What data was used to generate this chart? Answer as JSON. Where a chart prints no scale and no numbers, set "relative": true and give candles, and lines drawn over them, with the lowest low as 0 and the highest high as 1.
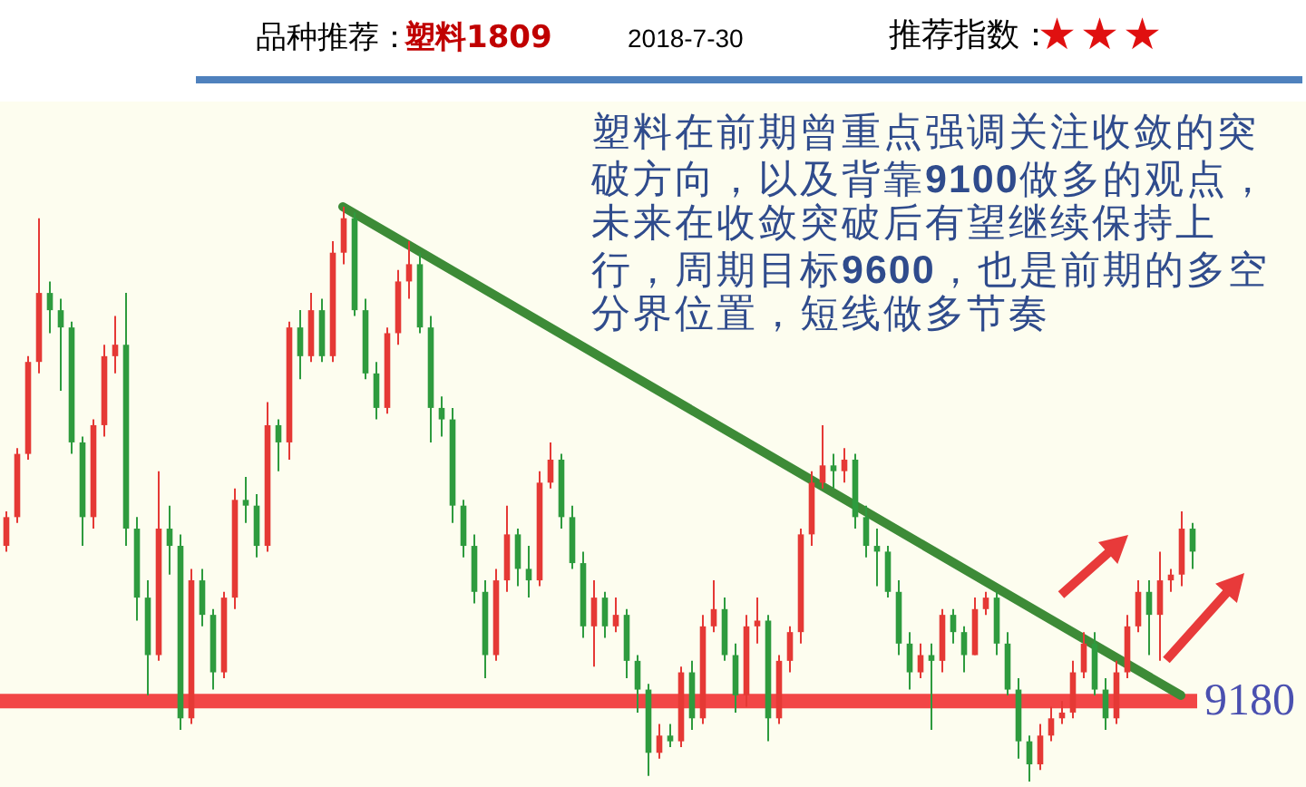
{
  "chart_data": {
    "type": "candlestick",
    "relative": true,
    "categories": [
      null,
      null,
      null,
      null,
      null,
      null,
      null,
      null,
      null,
      null,
      null,
      null,
      null,
      null,
      null,
      null,
      null,
      null,
      null,
      null,
      null,
      null,
      null,
      null,
      null,
      null,
      null,
      null,
      null,
      null,
      null,
      null,
      null,
      null,
      null,
      null,
      null,
      null,
      null,
      null,
      null,
      null,
      null,
      null,
      null,
      null,
      null,
      null,
      null,
      null,
      null,
      null,
      null,
      null,
      null,
      null,
      null,
      null,
      null,
      null,
      null,
      null,
      null,
      null,
      null,
      null,
      null,
      null,
      null,
      null,
      null,
      null,
      null,
      null,
      null,
      null,
      null,
      null,
      null,
      null,
      null,
      null,
      null,
      null,
      null,
      null,
      null,
      null,
      null,
      null,
      null,
      null,
      null,
      null,
      null,
      null,
      null,
      null,
      null,
      null,
      null,
      null,
      null,
      null,
      null,
      null,
      null,
      null,
      null,
      null
    ],
    "ohlc": [
      [
        0.41,
        0.47,
        0.4,
        0.46
      ],
      [
        0.46,
        0.58,
        0.45,
        0.57
      ],
      [
        0.57,
        0.74,
        0.56,
        0.73
      ],
      [
        0.73,
        0.98,
        0.71,
        0.85
      ],
      [
        0.85,
        0.87,
        0.78,
        0.82
      ],
      [
        0.82,
        0.84,
        0.68,
        0.79
      ],
      [
        0.79,
        0.8,
        0.57,
        0.59
      ],
      [
        0.59,
        0.6,
        0.41,
        0.46
      ],
      [
        0.46,
        0.63,
        0.44,
        0.62
      ],
      [
        0.62,
        0.76,
        0.6,
        0.74
      ],
      [
        0.74,
        0.81,
        0.71,
        0.76
      ],
      [
        0.76,
        0.85,
        0.41,
        0.44
      ],
      [
        0.44,
        0.46,
        0.28,
        0.32
      ],
      [
        0.32,
        0.35,
        0.15,
        0.22
      ],
      [
        0.22,
        0.54,
        0.21,
        0.44
      ],
      [
        0.44,
        0.48,
        0.36,
        0.41
      ],
      [
        0.41,
        0.43,
        0.09,
        0.11
      ],
      [
        0.11,
        0.37,
        0.1,
        0.35
      ],
      [
        0.35,
        0.37,
        0.27,
        0.29
      ],
      [
        0.29,
        0.3,
        0.16,
        0.19
      ],
      [
        0.19,
        0.33,
        0.18,
        0.32
      ],
      [
        0.32,
        0.51,
        0.3,
        0.49
      ],
      [
        0.49,
        0.53,
        0.45,
        0.48
      ],
      [
        0.48,
        0.5,
        0.39,
        0.41
      ],
      [
        0.41,
        0.66,
        0.4,
        0.62
      ],
      [
        0.62,
        0.63,
        0.54,
        0.59
      ],
      [
        0.59,
        0.8,
        0.56,
        0.79
      ],
      [
        0.79,
        0.82,
        0.7,
        0.74
      ],
      [
        0.74,
        0.85,
        0.73,
        0.82
      ],
      [
        0.82,
        0.84,
        0.73,
        0.74
      ],
      [
        0.74,
        0.94,
        0.73,
        0.92
      ],
      [
        0.92,
        1.0,
        0.9,
        0.98
      ],
      [
        0.98,
        0.99,
        0.81,
        0.82
      ],
      [
        0.82,
        0.84,
        0.7,
        0.71
      ],
      [
        0.71,
        0.73,
        0.63,
        0.65
      ],
      [
        0.65,
        0.79,
        0.64,
        0.78
      ],
      [
        0.78,
        0.89,
        0.76,
        0.87
      ],
      [
        0.87,
        0.94,
        0.84,
        0.9
      ],
      [
        0.9,
        0.92,
        0.78,
        0.79
      ],
      [
        0.79,
        0.81,
        0.59,
        0.65
      ],
      [
        0.65,
        0.67,
        0.6,
        0.63
      ],
      [
        0.63,
        0.65,
        0.45,
        0.48
      ],
      [
        0.48,
        0.49,
        0.39,
        0.41
      ],
      [
        0.41,
        0.43,
        0.31,
        0.33
      ],
      [
        0.33,
        0.35,
        0.18,
        0.22
      ],
      [
        0.22,
        0.37,
        0.21,
        0.35
      ],
      [
        0.35,
        0.48,
        0.33,
        0.43
      ],
      [
        0.43,
        0.44,
        0.34,
        0.37
      ],
      [
        0.37,
        0.41,
        0.32,
        0.35
      ],
      [
        0.35,
        0.54,
        0.34,
        0.52
      ],
      [
        0.52,
        0.59,
        0.51,
        0.56
      ],
      [
        0.56,
        0.57,
        0.44,
        0.46
      ],
      [
        0.46,
        0.48,
        0.37,
        0.38
      ],
      [
        0.38,
        0.4,
        0.25,
        0.27
      ],
      [
        0.27,
        0.35,
        0.2,
        0.32
      ],
      [
        0.32,
        0.33,
        0.25,
        0.27
      ],
      [
        0.27,
        0.32,
        0.26,
        0.29
      ],
      [
        0.29,
        0.3,
        0.18,
        0.21
      ],
      [
        0.21,
        0.22,
        0.12,
        0.16
      ],
      [
        0.16,
        0.17,
        0.01,
        0.05
      ],
      [
        0.05,
        0.1,
        0.04,
        0.08
      ],
      [
        0.08,
        0.1,
        0.06,
        0.07
      ],
      [
        0.07,
        0.2,
        0.06,
        0.19
      ],
      [
        0.19,
        0.21,
        0.09,
        0.11
      ],
      [
        0.11,
        0.29,
        0.1,
        0.27
      ],
      [
        0.27,
        0.35,
        0.26,
        0.3
      ],
      [
        0.3,
        0.32,
        0.21,
        0.22
      ],
      [
        0.22,
        0.24,
        0.12,
        0.15
      ],
      [
        0.15,
        0.29,
        0.13,
        0.27
      ],
      [
        0.27,
        0.32,
        0.24,
        0.28
      ],
      [
        0.28,
        0.29,
        0.07,
        0.11
      ],
      [
        0.11,
        0.22,
        0.1,
        0.21
      ],
      [
        0.21,
        0.27,
        0.19,
        0.26
      ],
      [
        0.26,
        0.44,
        0.24,
        0.43
      ],
      [
        0.43,
        0.54,
        0.41,
        0.52
      ],
      [
        0.52,
        0.62,
        0.51,
        0.55
      ],
      [
        0.55,
        0.57,
        0.51,
        0.54
      ],
      [
        0.54,
        0.58,
        0.52,
        0.56
      ],
      [
        0.56,
        0.57,
        0.44,
        0.46
      ],
      [
        0.46,
        0.48,
        0.39,
        0.41
      ],
      [
        0.41,
        0.44,
        0.34,
        0.4
      ],
      [
        0.4,
        0.41,
        0.32,
        0.33
      ],
      [
        0.33,
        0.35,
        0.22,
        0.24
      ],
      [
        0.24,
        0.26,
        0.16,
        0.19
      ],
      [
        0.19,
        0.24,
        0.18,
        0.22
      ],
      [
        0.22,
        0.24,
        0.09,
        0.21
      ],
      [
        0.21,
        0.3,
        0.19,
        0.29
      ],
      [
        0.29,
        0.3,
        0.24,
        0.26
      ],
      [
        0.26,
        0.27,
        0.19,
        0.22
      ],
      [
        0.22,
        0.32,
        0.22,
        0.3
      ],
      [
        0.3,
        0.33,
        0.29,
        0.32
      ],
      [
        0.32,
        0.33,
        0.22,
        0.24
      ],
      [
        0.24,
        0.26,
        0.15,
        0.16
      ],
      [
        0.16,
        0.18,
        0.04,
        0.07
      ],
      [
        0.07,
        0.08,
        0.0,
        0.03
      ],
      [
        0.03,
        0.1,
        0.02,
        0.08
      ],
      [
        0.08,
        0.13,
        0.07,
        0.11
      ],
      [
        0.11,
        0.14,
        0.1,
        0.12
      ],
      [
        0.12,
        0.21,
        0.11,
        0.19
      ],
      [
        0.19,
        0.26,
        0.18,
        0.24
      ],
      [
        0.24,
        0.26,
        0.15,
        0.16
      ],
      [
        0.16,
        0.18,
        0.09,
        0.11
      ],
      [
        0.11,
        0.21,
        0.1,
        0.19
      ],
      [
        0.19,
        0.29,
        0.18,
        0.27
      ],
      [
        0.27,
        0.35,
        0.26,
        0.33
      ],
      [
        0.33,
        0.35,
        0.22,
        0.29
      ],
      [
        0.29,
        0.4,
        0.21,
        0.35
      ],
      [
        0.35,
        0.37,
        0.33,
        0.36
      ],
      [
        0.36,
        0.47,
        0.34,
        0.44
      ],
      [
        0.44,
        0.45,
        0.37,
        0.4
      ]
    ],
    "colors": [
      "#e53935",
      "#e53935",
      "#e53935",
      "#e53935",
      "#2e9b3e",
      "#2e9b3e",
      "#2e9b3e",
      "#2e9b3e",
      "#e53935",
      "#e53935",
      "#e53935",
      "#2e9b3e",
      "#2e9b3e",
      "#2e9b3e",
      "#e53935",
      "#2e9b3e",
      "#2e9b3e",
      "#e53935",
      "#2e9b3e",
      "#2e9b3e",
      "#e53935",
      "#e53935",
      "#2e9b3e",
      "#2e9b3e",
      "#e53935",
      "#2e9b3e",
      "#e53935",
      "#2e9b3e",
      "#e53935",
      "#2e9b3e",
      "#e53935",
      "#e53935",
      "#2e9b3e",
      "#2e9b3e",
      "#2e9b3e",
      "#e53935",
      "#e53935",
      "#e53935",
      "#2e9b3e",
      "#2e9b3e",
      "#2e9b3e",
      "#2e9b3e",
      "#2e9b3e",
      "#2e9b3e",
      "#2e9b3e",
      "#e53935",
      "#e53935",
      "#2e9b3e",
      "#2e9b3e",
      "#e53935",
      "#e53935",
      "#2e9b3e",
      "#2e9b3e",
      "#2e9b3e",
      "#e53935",
      "#2e9b3e",
      "#e53935",
      "#2e9b3e",
      "#2e9b3e",
      "#2e9b3e",
      "#e53935",
      "#2e9b3e",
      "#e53935",
      "#2e9b3e",
      "#e53935",
      "#e53935",
      "#2e9b3e",
      "#2e9b3e",
      "#e53935",
      "#e53935",
      "#2e9b3e",
      "#e53935",
      "#e53935",
      "#e53935",
      "#e53935",
      "#e53935",
      "#2e9b3e",
      "#e53935",
      "#2e9b3e",
      "#2e9b3e",
      "#2e9b3e",
      "#2e9b3e",
      "#2e9b3e",
      "#2e9b3e",
      "#e53935",
      "#2e9b3e",
      "#e53935",
      "#2e9b3e",
      "#2e9b3e",
      "#e53935",
      "#e53935",
      "#2e9b3e",
      "#2e9b3e",
      "#2e9b3e",
      "#2e9b3e",
      "#e53935",
      "#e53935",
      "#e53935",
      "#e53935",
      "#e53935",
      "#2e9b3e",
      "#2e9b3e",
      "#e53935",
      "#e53935",
      "#e53935",
      "#2e9b3e",
      "#e53935",
      "#e53935",
      "#e53935",
      "#2e9b3e"
    ],
    "series": [
      {
        "type": "line",
        "color": "#3d8b37",
        "values": [
          null,
          null,
          null,
          null,
          null,
          null,
          null,
          null,
          null,
          null,
          null,
          null,
          null,
          null,
          null,
          null,
          null,
          null,
          null,
          null,
          null,
          null,
          null,
          null,
          null,
          null,
          null,
          null,
          null,
          null,
          null,
          1,
          null,
          null,
          null,
          null,
          null,
          null,
          null,
          null,
          null,
          null,
          null,
          null,
          null,
          null,
          null,
          null,
          null,
          null,
          null,
          null,
          null,
          null,
          null,
          null,
          null,
          null,
          null,
          null,
          null,
          null,
          null,
          null,
          null,
          null,
          null,
          null,
          null,
          null,
          null,
          null,
          null,
          null,
          null,
          null,
          null,
          null,
          null,
          null,
          null,
          null,
          null,
          null,
          null,
          null,
          null,
          null,
          null,
          null,
          null,
          null,
          null,
          null,
          null,
          null,
          null,
          null,
          null,
          null,
          null,
          null,
          null,
          null,
          null,
          null,
          null,
          null,
          0.15,
          null
        ]
      }
    ],
    "ref_lines": [
      {
        "axis": "y",
        "value": 0.14,
        "color": "#f24646"
      }
    ],
    "annotations": [
      "品种推荐：",
      "塑料1809",
      "2018-7-30",
      "推荐指数：",
      "★★★",
      "塑料在前期曾重点强调关注收敛的突破方向，以及背靠9100做多的观点，未来在收敛突破后有望继续保持上行，周期目标9600，也是前期的多空分界位置，短线做多节奏",
      "9180"
    ]
  }
}
